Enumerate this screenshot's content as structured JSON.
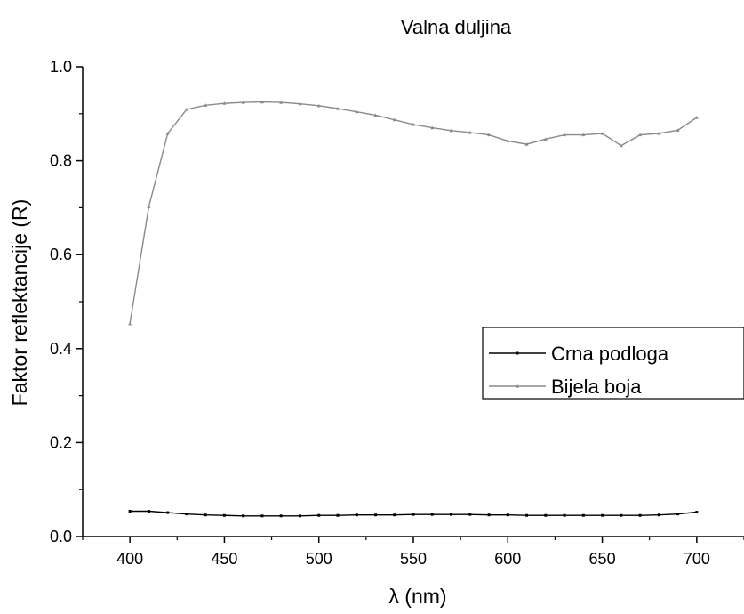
{
  "chart_data": {
    "type": "line",
    "title": "Valna duljina",
    "xlabel": "λ (nm)",
    "ylabel": "Faktor reflektancije (R)",
    "xlim": [
      375,
      725
    ],
    "ylim": [
      0,
      1.0
    ],
    "x_ticks": [
      400,
      450,
      500,
      550,
      600,
      650,
      700
    ],
    "x_tick_labels": [
      "400",
      "450",
      "500",
      "550",
      "600",
      "650",
      "700"
    ],
    "y_ticks": [
      0,
      0.2,
      0.4,
      0.6,
      0.8,
      1.0
    ],
    "y_tick_labels": [
      "0.0",
      "0.2",
      "0.4",
      "0.6",
      "0.8",
      "1.0"
    ],
    "grid": false,
    "legend_position": "right",
    "x": [
      400,
      410,
      420,
      430,
      440,
      450,
      460,
      470,
      480,
      490,
      500,
      510,
      520,
      530,
      540,
      550,
      560,
      570,
      580,
      590,
      600,
      610,
      620,
      630,
      640,
      650,
      660,
      670,
      680,
      690,
      700
    ],
    "series": [
      {
        "name": "Crna podloga",
        "color": "#000000",
        "values": [
          0.054,
          0.054,
          0.051,
          0.048,
          0.046,
          0.045,
          0.044,
          0.044,
          0.044,
          0.044,
          0.045,
          0.045,
          0.046,
          0.046,
          0.046,
          0.047,
          0.047,
          0.047,
          0.047,
          0.046,
          0.046,
          0.045,
          0.045,
          0.045,
          0.045,
          0.045,
          0.045,
          0.045,
          0.046,
          0.048,
          0.052
        ]
      },
      {
        "name": "Bijela boja",
        "color": "#8a8a8a",
        "values": [
          0.453,
          0.702,
          0.858,
          0.909,
          0.918,
          0.922,
          0.924,
          0.925,
          0.924,
          0.921,
          0.917,
          0.911,
          0.904,
          0.897,
          0.887,
          0.877,
          0.87,
          0.864,
          0.86,
          0.855,
          0.842,
          0.835,
          0.846,
          0.855,
          0.855,
          0.858,
          0.832,
          0.855,
          0.858,
          0.865,
          0.892
        ]
      }
    ]
  }
}
